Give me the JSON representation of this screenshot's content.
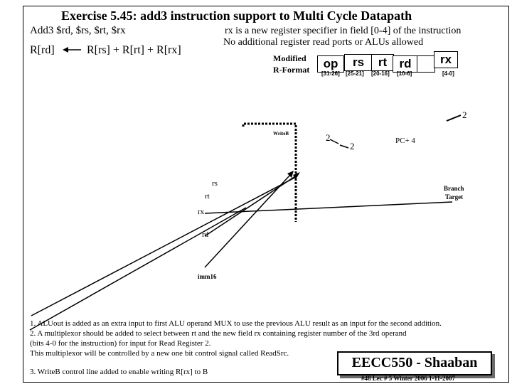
{
  "title": "Exercise 5.45:   add3  instruction support to Multi Cycle Datapath",
  "syntax": "Add3 $rd, $rs, $rt, $rx",
  "rx_note_line1": "rx is a new register specifier in field [0-4] of the instruction",
  "rx_note_line2": "No additional register read ports or ALUs allowed",
  "rtl_lhs": "R[rd]",
  "rtl_rhs": "R[rs] + R[rt] + R[rx]",
  "format_label_line1": "Modified",
  "format_label_line2": "R-Format",
  "fields": [
    {
      "name": "op",
      "bits": "[31-26]"
    },
    {
      "name": "rs",
      "bits": "[25-21]"
    },
    {
      "name": "rt",
      "bits": "[20-16]"
    },
    {
      "name": "rd",
      "bits": "[10-6]"
    },
    {
      "name": "rx",
      "bits": "[4-0]"
    }
  ],
  "diagram": {
    "writeb": "WriteB",
    "label_2a": "2",
    "label_2b": "2",
    "label_2c": "2",
    "pc4": "PC+ 4",
    "branch": "Branch",
    "target": "Target",
    "rs": "rs",
    "rt": "rt",
    "rx": "rx",
    "rd": "rd",
    "imm": "imm16"
  },
  "notes": [
    "1. ALUout is added as an extra input to first ALU operand MUX to use the previous ALU result  as an input for the second addition.",
    "2. A multiplexor should be added to select between  rt and the new field rx containing register number of the 3rd operand",
    " (bits 4-0 for the instruction) for input for Read Register 2.",
    "This multiplexor will be controlled by a new one bit control signal called ReadSrc.",
    "3.  WriteB control line added to enable writing R[rx] to B"
  ],
  "brand": "EECC550 - Shaaban",
  "footer": "#48   Lec # 5  Winter 2006  1-11-2007"
}
